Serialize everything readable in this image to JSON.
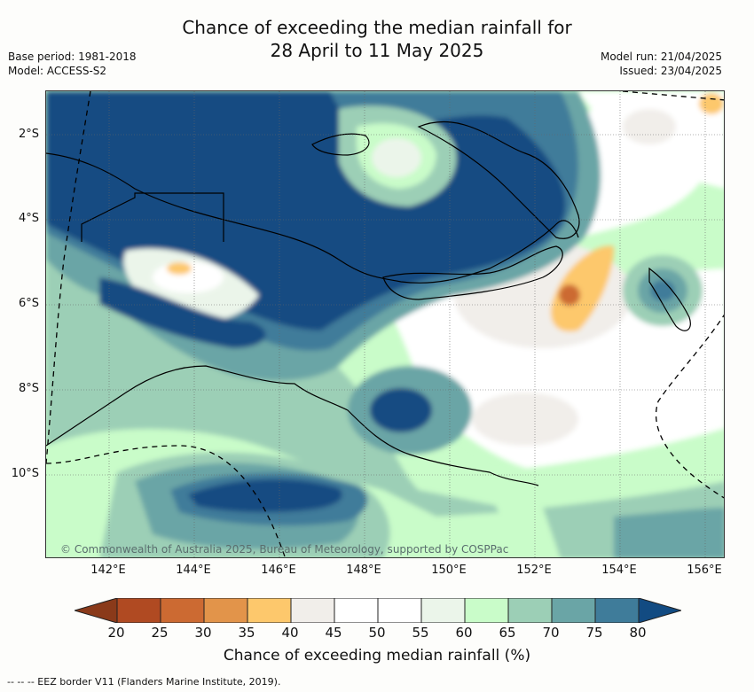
{
  "header": {
    "title_line1": "Chance of exceeding the median rainfall for",
    "title_line2": "28 April to 11 May 2025",
    "base_period": "Base period: 1981-2018",
    "model": "Model: ACCESS-S2",
    "model_run": "Model run: 21/04/2025",
    "issued": "Issued: 23/04/2025"
  },
  "map": {
    "lat_labels": [
      "2°S",
      "4°S",
      "6°S",
      "8°S",
      "10°S"
    ],
    "lon_labels": [
      "142°E",
      "144°E",
      "146°E",
      "148°E",
      "150°E",
      "152°E",
      "154°E",
      "156°E"
    ],
    "copyright": "© Commonwealth of Australia 2025, Bureau of Meteorology, supported by COSPPac"
  },
  "colorbar": {
    "ticks": [
      "20",
      "25",
      "30",
      "35",
      "40",
      "45",
      "50",
      "55",
      "60",
      "65",
      "70",
      "75",
      "80"
    ],
    "colors": [
      "#8a3a1a",
      "#b04a22",
      "#cc6a32",
      "#e2944a",
      "#fdc86c",
      "#f1eeea",
      "#ffffff",
      "#ffffff",
      "#ebf5ea",
      "#c9fcc9",
      "#9ccfb6",
      "#6aa5a6",
      "#3f7c9a",
      "#124b82"
    ],
    "title": "Chance of exceeding median rainfall (%)"
  },
  "footer": {
    "eez_note": "-- -- -- EEZ border V11 (Flanders Marine Institute, 2019)."
  }
}
